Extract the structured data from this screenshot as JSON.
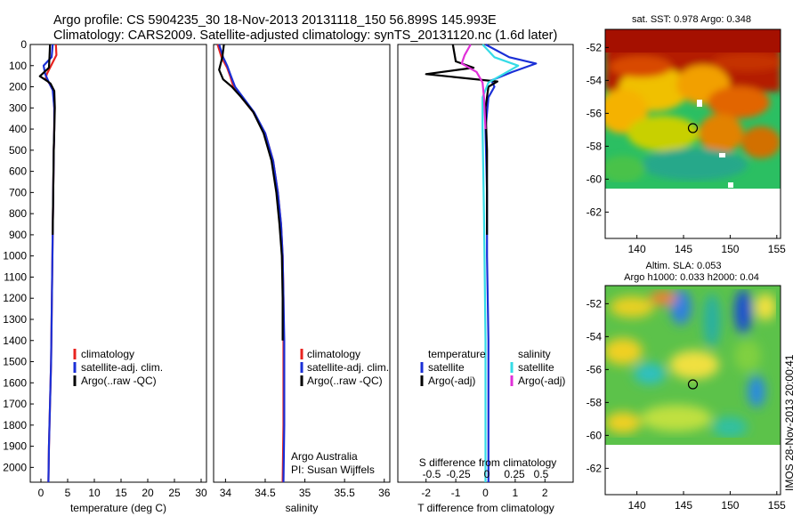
{
  "header": {
    "line1": "Argo profile: CS 5904235_30 18-Nov-2013 20131118_150 56.899S 145.993E",
    "line2": "Climatology: CARS2009. Satellite-adjusted climatology: synTS_20131120.nc (1.6d later)"
  },
  "stamp": "IMOS 28-Nov-2013 20:00:41",
  "colors": {
    "climatology": "#e8231f",
    "satellite": "#1a2fd6",
    "argo": "#000000",
    "sal_satellite": "#35dbe6",
    "sal_argo": "#e030d8"
  },
  "chart_data": [
    {
      "id": "temperature",
      "type": "line",
      "xlabel": "temperature (deg C)",
      "ylabel": "",
      "xlim": [
        -2,
        31
      ],
      "ylim": [
        2070,
        0
      ],
      "xticks": [
        "0",
        "5",
        "10",
        "15",
        "20",
        "25",
        "30"
      ],
      "yticks": [
        "0",
        "100",
        "200",
        "300",
        "400",
        "500",
        "600",
        "700",
        "800",
        "900",
        "1000",
        "1100",
        "1200",
        "1300",
        "1400",
        "1500",
        "1600",
        "1700",
        "1800",
        "1900",
        "2000"
      ],
      "legend": [
        "climatology",
        "satellite-adj. clim.",
        "Argo(..raw -QC)"
      ],
      "series": [
        {
          "name": "climatology",
          "color_key": "climatology",
          "x": [
            2.8,
            2.9,
            1.9,
            1.1,
            0.9,
            1.6,
            2.3,
            2.5,
            2.5,
            2.4,
            2.3,
            2.2,
            2.1,
            2.0,
            1.9,
            1.8,
            1.7,
            1.6,
            1.5,
            1.4
          ],
          "y": [
            0,
            50,
            100,
            140,
            160,
            185,
            220,
            300,
            400,
            500,
            700,
            900,
            1100,
            1300,
            1500,
            1600,
            1700,
            1800,
            1900,
            2070
          ]
        },
        {
          "name": "satellite-adj. clim.",
          "color_key": "satellite",
          "x": [
            2.2,
            2.0,
            0.5,
            0.8,
            1.5,
            2.2,
            2.5,
            2.5,
            2.4,
            2.3,
            2.2,
            2.1,
            2.0,
            1.9,
            1.8,
            1.7,
            1.6,
            1.5,
            1.4
          ],
          "y": [
            0,
            60,
            100,
            140,
            180,
            215,
            300,
            400,
            500,
            700,
            900,
            1100,
            1300,
            1500,
            1600,
            1700,
            1800,
            1900,
            2070
          ]
        },
        {
          "name": "Argo(..raw -QC)",
          "color_key": "argo",
          "x": [
            1.7,
            1.6,
            1.5,
            -0.2,
            1.3,
            1.8,
            2.5,
            2.6,
            2.5,
            2.4,
            2.3,
            2.2
          ],
          "y": [
            0,
            60,
            110,
            150,
            175,
            185,
            220,
            300,
            400,
            500,
            700,
            900
          ]
        }
      ]
    },
    {
      "id": "salinity",
      "type": "line",
      "xlabel": "salinity",
      "ylabel": "",
      "xlim": [
        33.85,
        36.07
      ],
      "ylim": [
        2070,
        0
      ],
      "xticks": [
        "34",
        "34.5",
        "35",
        "35.5",
        "36"
      ],
      "legend": [
        "climatology",
        "satellite-adj. clim.",
        "Argo(..raw -QC)"
      ],
      "annotation_line1": "Argo Australia",
      "annotation_line2": "PI: Susan Wijffels",
      "series": [
        {
          "name": "climatology",
          "color_key": "climatology",
          "x": [
            33.9,
            33.95,
            34.02,
            34.06,
            34.1,
            34.2,
            34.35,
            34.5,
            34.6,
            34.66,
            34.7,
            34.72,
            34.73,
            34.73,
            34.73,
            34.73,
            34.72
          ],
          "y": [
            0,
            60,
            110,
            150,
            200,
            250,
            320,
            420,
            550,
            700,
            850,
            1000,
            1200,
            1400,
            1600,
            1800,
            2070
          ]
        },
        {
          "name": "satellite-adj. clim.",
          "color_key": "satellite",
          "x": [
            33.92,
            33.97,
            34.02,
            34.07,
            34.12,
            34.22,
            34.36,
            34.5,
            34.6,
            34.66,
            34.7,
            34.72,
            34.73,
            34.74,
            34.74,
            34.74,
            34.73
          ],
          "y": [
            0,
            60,
            100,
            150,
            200,
            250,
            320,
            420,
            550,
            700,
            850,
            1000,
            1200,
            1400,
            1600,
            1800,
            2070
          ]
        },
        {
          "name": "Argo(..raw -QC)",
          "color_key": "argo",
          "x": [
            33.98,
            33.96,
            33.92,
            33.97,
            34.08,
            34.2,
            34.35,
            34.48,
            34.58,
            34.64,
            34.68,
            34.71,
            34.72,
            34.72
          ],
          "y": [
            0,
            60,
            120,
            165,
            200,
            250,
            320,
            420,
            550,
            700,
            850,
            1000,
            1200,
            1400
          ]
        }
      ]
    },
    {
      "id": "difference",
      "type": "line",
      "xlabel": "T difference from climatology",
      "ylabel": "",
      "top_label": "S difference from climatology",
      "xlim": [
        -2.95,
        2.95
      ],
      "ylim": [
        2070,
        0
      ],
      "xticks": [
        "-2",
        "-1",
        "0",
        "1",
        "2"
      ],
      "sticks": [
        "-0.5",
        "-0.25",
        "0",
        "0.25",
        "0.5"
      ],
      "legend_title_left": "temperature",
      "legend_title_right": "salinity",
      "legend_left": [
        "satellite",
        "Argo(-adj)"
      ],
      "legend_right": [
        "satellite",
        "Argo(-adj)"
      ],
      "series": [
        {
          "name": "T satellite",
          "color_key": "satellite",
          "x": [
            0.0,
            0.8,
            1.7,
            0.9,
            0.2,
            0.3,
            0.1,
            0.0,
            0.05,
            0.05,
            0.1,
            0.1,
            0.1
          ],
          "y": [
            0,
            60,
            90,
            130,
            170,
            200,
            250,
            400,
            700,
            1000,
            1400,
            1800,
            2070
          ]
        },
        {
          "name": "T Argo(-adj)",
          "color_key": "argo",
          "x": [
            -1.1,
            -1.0,
            -0.4,
            -2.0,
            0.4,
            0.1,
            0.0,
            0.05,
            0.05
          ],
          "y": [
            0,
            80,
            110,
            140,
            175,
            200,
            300,
            500,
            900
          ]
        },
        {
          "name": "S satellite",
          "color_key": "sal_satellite",
          "x": [
            -0.1,
            0.3,
            1.1,
            0.6,
            0.1,
            -0.1,
            -0.1,
            -0.05,
            0.0,
            0.0
          ],
          "y": [
            0,
            60,
            100,
            140,
            180,
            250,
            400,
            800,
            1400,
            2070
          ]
        },
        {
          "name": "S Argo(-adj)",
          "color_key": "sal_argo",
          "x": [
            -0.5,
            -0.7,
            -0.8,
            -0.3,
            -0.1,
            -0.05,
            0.0
          ],
          "y": [
            0,
            50,
            90,
            130,
            180,
            250,
            400
          ]
        }
      ]
    },
    {
      "id": "sst_map",
      "type": "heatmap",
      "title": "sat. SST: 0.978 Argo: 0.348",
      "xlim": [
        136.6,
        155.4
      ],
      "ylim": [
        -63.6,
        -50.9
      ],
      "xticks": [
        "140",
        "145",
        "150",
        "155"
      ],
      "yticks": [
        "-52",
        "-54",
        "-56",
        "-58",
        "-60",
        "-62"
      ],
      "data_extent_lat": [
        -60,
        -50.9
      ],
      "marker": {
        "lon": 146.0,
        "lat": -56.9
      }
    },
    {
      "id": "sla_map",
      "type": "heatmap",
      "title_line1": "Altim. SLA: 0.053",
      "title_line2": "Argo h1000: 0.033 h2000: 0.04",
      "xlim": [
        136.6,
        155.4
      ],
      "ylim": [
        -63.6,
        -50.9
      ],
      "xticks": [
        "140",
        "145",
        "150",
        "155"
      ],
      "yticks": [
        "-52",
        "-54",
        "-56",
        "-58",
        "-60",
        "-62"
      ],
      "data_extent_lat": [
        -60,
        -50.9
      ],
      "marker": {
        "lon": 146.0,
        "lat": -56.9
      }
    }
  ]
}
